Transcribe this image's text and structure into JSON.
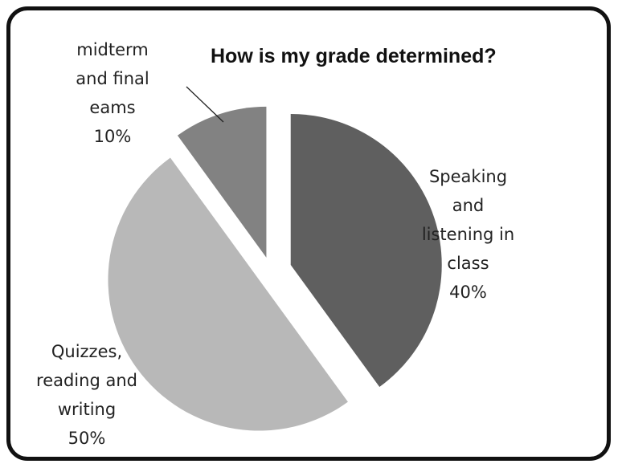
{
  "chart_data": {
    "type": "pie",
    "title": "How is my grade determined?",
    "colors": [
      "#5f5f5f",
      "#b8b8b8",
      "#828282"
    ],
    "slices": [
      {
        "lines": [
          "Speaking",
          "and",
          "listening in",
          "class"
        ],
        "pct_label": "40%",
        "value": 40
      },
      {
        "lines": [
          "Quizzes,",
          "reading and",
          "writing"
        ],
        "pct_label": "50%",
        "value": 50
      },
      {
        "lines": [
          "midterm",
          "and final",
          "eams"
        ],
        "pct_label": "10%",
        "value": 10
      }
    ]
  }
}
